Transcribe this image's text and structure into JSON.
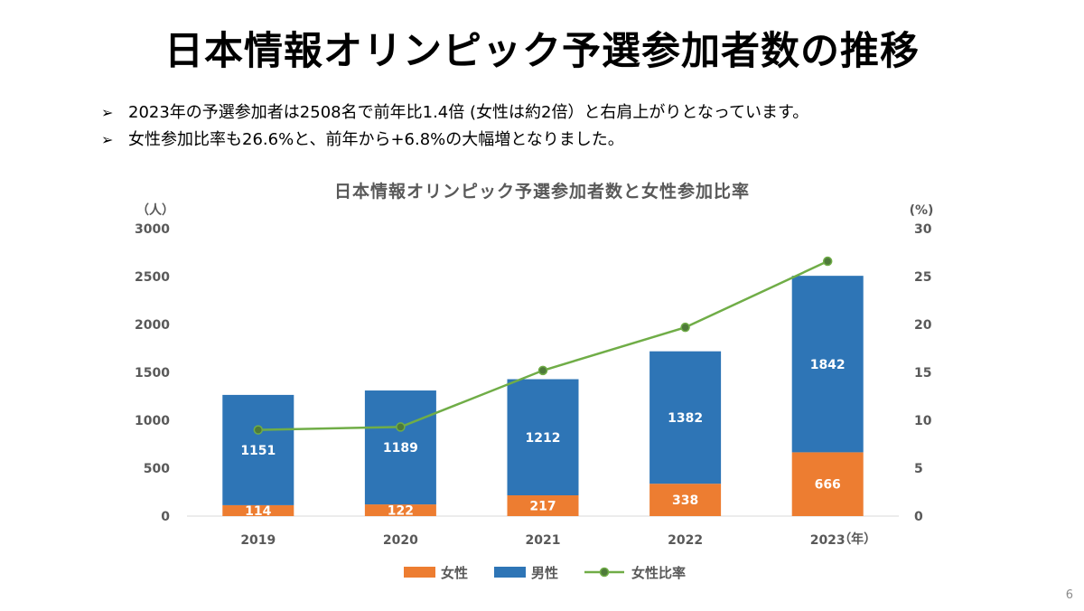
{
  "slide": {
    "title": "日本情報オリンピック予選参加者数の推移",
    "bullets": [
      "2023年の予選参加者は2508名で前年比1.4倍 (女性は約2倍）と右肩上がりとなっています。",
      "女性参加比率も26.6%と、前年から+6.8%の大幅増となりました。"
    ],
    "bullet_marker": "➢",
    "page_number": "6"
  },
  "chart_data": {
    "type": "bar",
    "stacked": true,
    "title": "日本情報オリンピック予選参加者数と女性参加比率",
    "categories": [
      "2019",
      "2020",
      "2021",
      "2022",
      "2023"
    ],
    "xlabel": "（年）",
    "ylabel_left": "（人）",
    "ylabel_right": "(%)",
    "ylim_left": [
      0,
      3000
    ],
    "yticks_left": [
      0,
      500,
      1000,
      1500,
      2000,
      2500,
      3000
    ],
    "ylim_right": [
      0,
      30
    ],
    "yticks_right": [
      0,
      5,
      10,
      15,
      20,
      25,
      30
    ],
    "grid": false,
    "legend_position": "bottom",
    "series": [
      {
        "name": "女性",
        "type": "bar",
        "axis": "left",
        "color": "#ED7D31",
        "values": [
          114,
          122,
          217,
          338,
          666
        ]
      },
      {
        "name": "男性",
        "type": "bar",
        "axis": "left",
        "color": "#2E75B6",
        "values": [
          1151,
          1189,
          1212,
          1382,
          1842
        ]
      },
      {
        "name": "女性比率",
        "type": "line",
        "axis": "right",
        "color": "#70AD47",
        "marker_color": "#4E7A3A",
        "values": [
          9.0,
          9.3,
          15.2,
          19.7,
          26.6
        ]
      }
    ]
  }
}
